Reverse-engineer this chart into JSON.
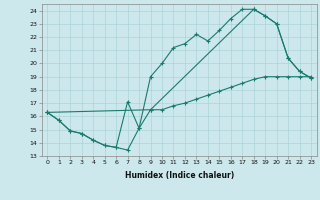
{
  "title": "",
  "xlabel": "Humidex (Indice chaleur)",
  "bg_color": "#cce8ec",
  "line_color": "#1a7a6e",
  "grid_color": "#aad4d8",
  "xlim": [
    -0.5,
    23.5
  ],
  "ylim": [
    13,
    24.5
  ],
  "yticks": [
    13,
    14,
    15,
    16,
    17,
    18,
    19,
    20,
    21,
    22,
    23,
    24
  ],
  "xticks": [
    0,
    1,
    2,
    3,
    4,
    5,
    6,
    7,
    8,
    9,
    10,
    11,
    12,
    13,
    14,
    15,
    16,
    17,
    18,
    19,
    20,
    21,
    22,
    23
  ],
  "line1_x": [
    0,
    1,
    2,
    3,
    4,
    5,
    6,
    7,
    8,
    9,
    10,
    11,
    12,
    13,
    14,
    15,
    16,
    17,
    18,
    19,
    20,
    21,
    22,
    23
  ],
  "line1_y": [
    16.3,
    15.7,
    14.9,
    14.7,
    14.2,
    13.8,
    13.65,
    13.45,
    15.1,
    16.5,
    16.5,
    16.8,
    17.0,
    17.3,
    17.6,
    17.9,
    18.2,
    18.5,
    18.8,
    19.0,
    19.0,
    19.0,
    19.0,
    19.0
  ],
  "line2_x": [
    0,
    1,
    2,
    3,
    4,
    5,
    6,
    7,
    8,
    9,
    10,
    11,
    12,
    13,
    14,
    15,
    16,
    17,
    18,
    19,
    20,
    21,
    22,
    23
  ],
  "line2_y": [
    16.3,
    15.7,
    14.9,
    14.7,
    14.2,
    13.8,
    13.65,
    17.1,
    15.1,
    19.0,
    20.0,
    21.2,
    21.5,
    22.2,
    21.7,
    22.5,
    23.4,
    24.1,
    24.1,
    23.6,
    23.0,
    20.4,
    19.4,
    18.9
  ],
  "line3_x": [
    0,
    9,
    18,
    19,
    20,
    21,
    22,
    23
  ],
  "line3_y": [
    16.3,
    16.5,
    24.1,
    23.6,
    23.0,
    20.4,
    19.4,
    18.9
  ]
}
